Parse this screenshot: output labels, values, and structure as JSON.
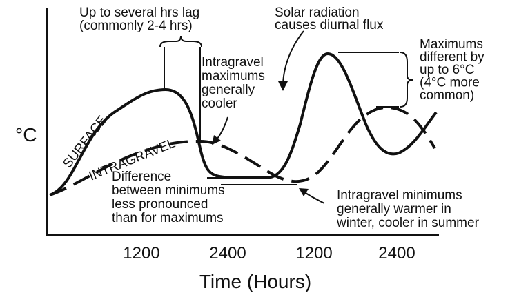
{
  "axes": {
    "y_label": "°C",
    "x_label": "Time (Hours)",
    "x_ticks": [
      "1200",
      "2400",
      "1200",
      "2400"
    ]
  },
  "curve_labels": [
    "SURFACE",
    "INTRAGRAVEL"
  ],
  "annotations": [
    {
      "lines": [
        "Up to several hrs lag",
        "(commonly 2-4 hrs)"
      ]
    },
    {
      "lines": [
        "Solar radiation",
        "causes diurnal flux"
      ]
    },
    {
      "lines": [
        "Intragravel",
        "maximums",
        "generally",
        "cooler"
      ]
    },
    {
      "lines": [
        "Maximums",
        "different by",
        "up to 6°C",
        "(4°C more",
        "common)"
      ]
    },
    {
      "lines": [
        "Difference",
        "between minimums",
        "less pronounced",
        "than for maximums"
      ]
    },
    {
      "lines": [
        "Intragravel minimums",
        "generally warmer in",
        "winter, cooler in summer"
      ]
    }
  ]
}
